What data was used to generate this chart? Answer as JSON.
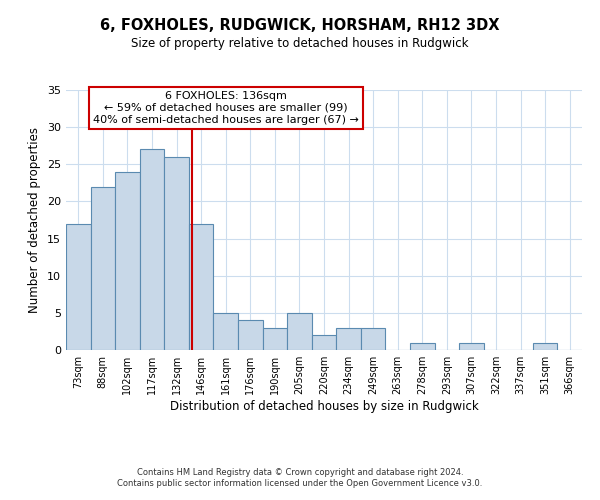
{
  "title": "6, FOXHOLES, RUDGWICK, HORSHAM, RH12 3DX",
  "subtitle": "Size of property relative to detached houses in Rudgwick",
  "xlabel": "Distribution of detached houses by size in Rudgwick",
  "ylabel": "Number of detached properties",
  "footer_line1": "Contains HM Land Registry data © Crown copyright and database right 2024.",
  "footer_line2": "Contains public sector information licensed under the Open Government Licence v3.0.",
  "annotation_line1": "6 FOXHOLES: 136sqm",
  "annotation_line2": "← 59% of detached houses are smaller (99)",
  "annotation_line3": "40% of semi-detached houses are larger (67) →",
  "bar_labels": [
    "73sqm",
    "88sqm",
    "102sqm",
    "117sqm",
    "132sqm",
    "146sqm",
    "161sqm",
    "176sqm",
    "190sqm",
    "205sqm",
    "220sqm",
    "234sqm",
    "249sqm",
    "263sqm",
    "278sqm",
    "293sqm",
    "307sqm",
    "322sqm",
    "337sqm",
    "351sqm",
    "366sqm"
  ],
  "bar_values": [
    17,
    22,
    24,
    27,
    26,
    17,
    5,
    4,
    3,
    5,
    2,
    3,
    3,
    0,
    1,
    0,
    1,
    0,
    0,
    1,
    0
  ],
  "bar_color": "#c8d8e8",
  "bar_edgecolor": "#5a8ab0",
  "vline_x": 4.62,
  "vline_color": "#cc0000",
  "ylim": [
    0,
    35
  ],
  "yticks": [
    0,
    5,
    10,
    15,
    20,
    25,
    30,
    35
  ],
  "bg_color": "#ffffff",
  "grid_color": "#ccddee",
  "annotation_box_edgecolor": "#cc0000"
}
